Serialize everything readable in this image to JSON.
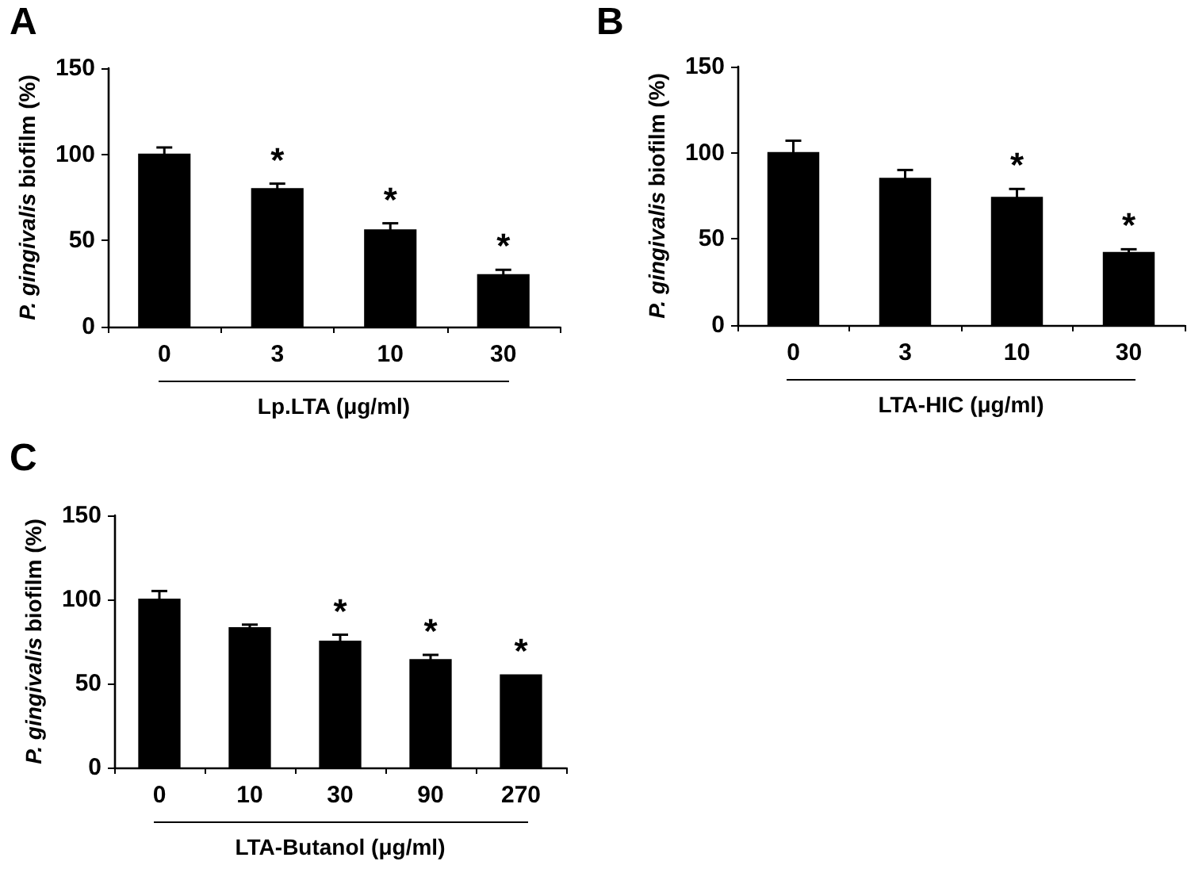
{
  "chart_data": [
    {
      "type": "bar",
      "title": "A",
      "xlabel": "Lp.LTA (μg/ml)",
      "ylabel": "P. gingivalis biofilm (%)",
      "categories": [
        "0",
        "3",
        "10",
        "30"
      ],
      "values": [
        100,
        80,
        56,
        30
      ],
      "color": "#000000",
      "errors": [
        [
          100,
          104
        ],
        [
          80,
          83
        ],
        [
          56,
          60
        ],
        [
          30,
          33
        ]
      ],
      "ylim": [
        0,
        150
      ],
      "yticks": [
        0,
        50,
        100,
        150
      ],
      "annotations": [
        {
          "text": "*",
          "x": "3",
          "y": 83
        },
        {
          "text": "*",
          "x": "10",
          "y": 60
        },
        {
          "text": "*",
          "x": "30",
          "y": 33
        }
      ]
    },
    {
      "type": "bar",
      "title": "B",
      "xlabel": "LTA-HIC (μg/ml)",
      "ylabel": "P. gingivalis biofilm (%)",
      "categories": [
        "0",
        "3",
        "10",
        "30"
      ],
      "values": [
        100,
        85,
        74,
        42
      ],
      "color": "#000000",
      "errors": [
        [
          100,
          107
        ],
        [
          85,
          90
        ],
        [
          74,
          79
        ],
        [
          42,
          44
        ]
      ],
      "ylim": [
        0,
        150
      ],
      "yticks": [
        0,
        50,
        100,
        150
      ],
      "annotations": [
        {
          "text": "*",
          "x": "10",
          "y": 79
        },
        {
          "text": "*",
          "x": "30",
          "y": 44
        }
      ]
    },
    {
      "type": "bar",
      "title": "C",
      "xlabel": "LTA-Butanol (μg/ml)",
      "ylabel": "P. gingivalis biofilm (%)",
      "categories": [
        "0",
        "10",
        "30",
        "90",
        "270"
      ],
      "values": [
        100,
        83,
        75,
        64,
        55
      ],
      "color": "#000000",
      "errors": [
        [
          100,
          105
        ],
        [
          83,
          85
        ],
        [
          75,
          79
        ],
        [
          64,
          67
        ],
        null
      ],
      "ylim": [
        0,
        150
      ],
      "yticks": [
        0,
        50,
        100,
        150
      ],
      "annotations": [
        {
          "text": "*",
          "x": "30",
          "y": 79
        },
        {
          "text": "*",
          "x": "90",
          "y": 67
        },
        {
          "text": "*",
          "x": "270",
          "y": 55
        }
      ]
    }
  ]
}
